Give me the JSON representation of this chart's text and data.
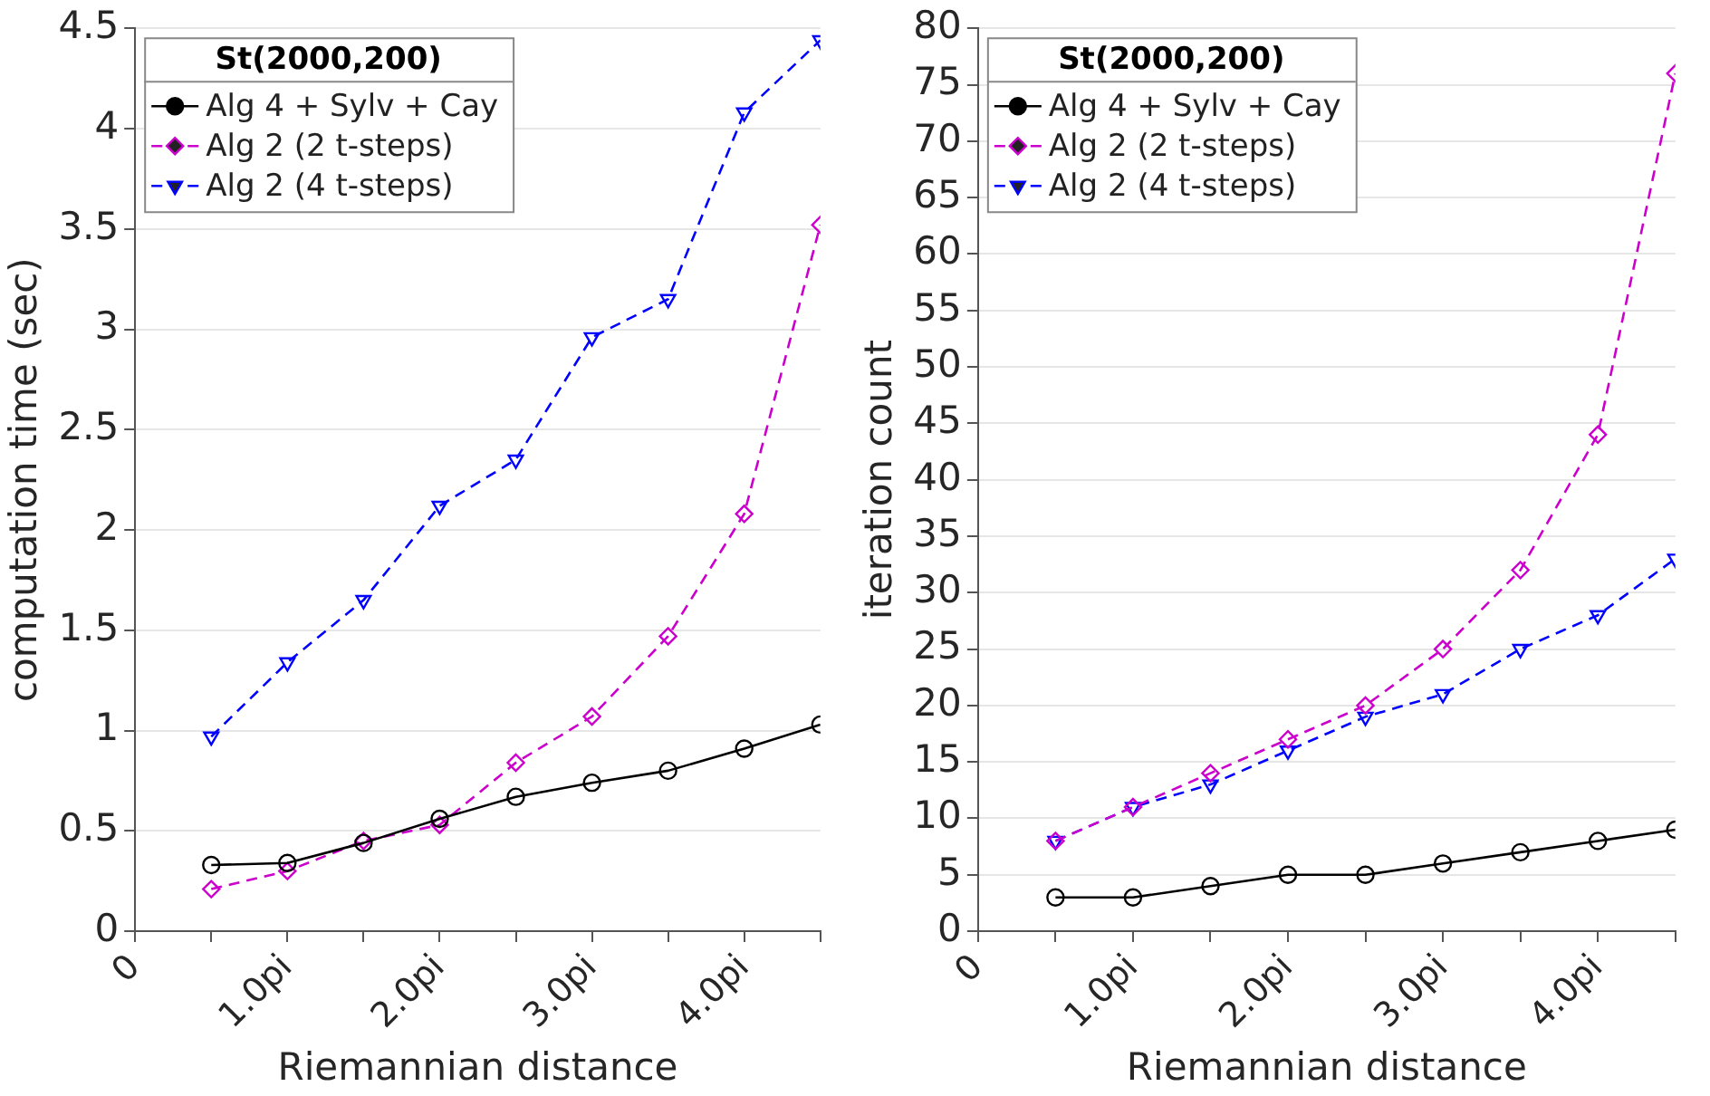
{
  "chart_data": [
    {
      "type": "line",
      "xlabel": "Riemannian distance",
      "ylabel": "computation time (sec)",
      "legend_title": "St(2000,200)",
      "legend": "top left",
      "grid": "y",
      "x": [
        0.5,
        1,
        1.5,
        2,
        2.5,
        3,
        3.5,
        4,
        4.5
      ],
      "xlim": [
        0,
        4.5
      ],
      "xticks": [
        0,
        {
          "value": 0.5,
          "label": null
        },
        {
          "value": 1,
          "label": "1.0pi"
        },
        {
          "value": 1.5,
          "label": null
        },
        {
          "value": 2,
          "label": "2.0pi"
        },
        {
          "value": 2.5,
          "label": null
        },
        {
          "value": 3,
          "label": "3.0pi"
        },
        {
          "value": 3.5,
          "label": null
        },
        {
          "value": 4,
          "label": "4.0pi"
        },
        {
          "value": 4.5,
          "label": null
        }
      ],
      "ylim": [
        0,
        4.5
      ],
      "yticks": [
        0,
        0.5,
        1,
        1.5,
        2,
        2.5,
        3,
        3.5,
        4,
        4.5
      ],
      "series": [
        {
          "name": "Alg 4 + Sylv + Cay",
          "color": "#000000",
          "marker": "circle",
          "line_style": "solid",
          "values": [
            0.33,
            0.34,
            0.44,
            0.56,
            0.67,
            0.74,
            0.8,
            0.91,
            1.03
          ]
        },
        {
          "name": "Alg 2 (2 t-steps)",
          "color": "#cc00cc",
          "marker": "diamond",
          "line_style": "dashed",
          "values": [
            0.21,
            0.3,
            0.45,
            0.53,
            0.84,
            1.07,
            1.47,
            2.08,
            3.52
          ]
        },
        {
          "name": "Alg 2 (4 t-steps)",
          "color": "#0000ff",
          "marker": "triangle",
          "line_style": "dashed",
          "values": [
            0.97,
            1.34,
            1.65,
            2.12,
            2.35,
            2.96,
            3.15,
            4.08,
            4.44
          ]
        }
      ]
    },
    {
      "type": "line",
      "xlabel": "Riemannian distance",
      "ylabel": "iteration count",
      "legend_title": "St(2000,200)",
      "legend": "top left",
      "grid": "y",
      "x": [
        0.5,
        1,
        1.5,
        2,
        2.5,
        3,
        3.5,
        4,
        4.5
      ],
      "xlim": [
        0,
        4.5
      ],
      "xticks": [
        0,
        {
          "value": 0.5,
          "label": null
        },
        {
          "value": 1,
          "label": "1.0pi"
        },
        {
          "value": 1.5,
          "label": null
        },
        {
          "value": 2,
          "label": "2.0pi"
        },
        {
          "value": 2.5,
          "label": null
        },
        {
          "value": 3,
          "label": "3.0pi"
        },
        {
          "value": 3.5,
          "label": null
        },
        {
          "value": 4,
          "label": "4.0pi"
        },
        {
          "value": 4.5,
          "label": null
        }
      ],
      "ylim": [
        0,
        80
      ],
      "yticks": [
        0,
        5,
        10,
        15,
        20,
        25,
        30,
        35,
        40,
        45,
        50,
        55,
        60,
        65,
        70,
        75,
        80
      ],
      "series": [
        {
          "name": "Alg 4 + Sylv + Cay",
          "color": "#000000",
          "marker": "circle",
          "line_style": "solid",
          "values": [
            3,
            3,
            4,
            5,
            5,
            6,
            7,
            8,
            9
          ]
        },
        {
          "name": "Alg 2 (2 t-steps)",
          "color": "#cc00cc",
          "marker": "diamond",
          "line_style": "dashed",
          "values": [
            8,
            11,
            14,
            17,
            20,
            25,
            32,
            44,
            76
          ]
        },
        {
          "name": "Alg 2 (4 t-steps)",
          "color": "#0000ff",
          "marker": "triangle",
          "line_style": "dashed",
          "values": [
            8,
            11,
            13,
            16,
            19,
            21,
            25,
            28,
            33
          ]
        }
      ]
    }
  ]
}
